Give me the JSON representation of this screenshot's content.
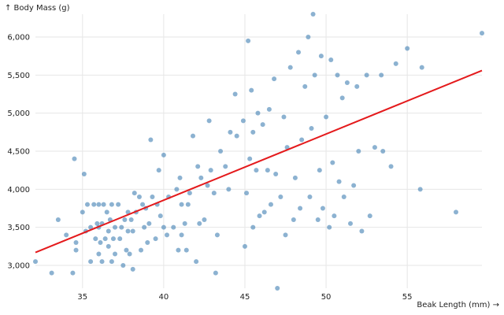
{
  "chart_data": {
    "type": "scatter",
    "xlabel": "Beak Length (mm) →",
    "ylabel": "↑ Body Mass (g)",
    "xlim": [
      32.1,
      59.6
    ],
    "ylim": [
      2700,
      6300
    ],
    "x_ticks": [
      35,
      40,
      45,
      50,
      55
    ],
    "y_ticks": [
      3000,
      3500,
      4000,
      4500,
      5000,
      5500,
      6000
    ],
    "x_tick_labels": [
      "35",
      "40",
      "45",
      "50",
      "55"
    ],
    "y_tick_labels": [
      "3,000",
      "3,500",
      "4,000",
      "4,500",
      "5,000",
      "5,500",
      "6,000"
    ],
    "grid": true,
    "colors": {
      "points": "#4682b4",
      "trend": "#e41a1c",
      "grid": "#e6e6e6"
    },
    "trend_line": {
      "x": [
        32.1,
        59.6
      ],
      "y": [
        3170,
        5560
      ]
    },
    "points": [
      [
        32.1,
        3050
      ],
      [
        33.1,
        2900
      ],
      [
        33.5,
        3600
      ],
      [
        34.0,
        3400
      ],
      [
        34.4,
        2900
      ],
      [
        34.5,
        4400
      ],
      [
        34.6,
        3200
      ],
      [
        34.6,
        3300
      ],
      [
        35.0,
        3700
      ],
      [
        35.1,
        4200
      ],
      [
        35.2,
        3450
      ],
      [
        35.3,
        3800
      ],
      [
        35.5,
        3050
      ],
      [
        35.5,
        3500
      ],
      [
        35.7,
        3800
      ],
      [
        35.8,
        3350
      ],
      [
        35.9,
        3550
      ],
      [
        36.0,
        3150
      ],
      [
        36.0,
        3500
      ],
      [
        36.0,
        3800
      ],
      [
        36.1,
        3300
      ],
      [
        36.2,
        3050
      ],
      [
        36.2,
        3550
      ],
      [
        36.3,
        3800
      ],
      [
        36.4,
        3350
      ],
      [
        36.5,
        3700
      ],
      [
        36.6,
        3250
      ],
      [
        36.6,
        3450
      ],
      [
        36.7,
        3600
      ],
      [
        36.8,
        3800
      ],
      [
        36.8,
        3050
      ],
      [
        36.9,
        3350
      ],
      [
        37.0,
        3150
      ],
      [
        37.0,
        3500
      ],
      [
        37.2,
        3800
      ],
      [
        37.3,
        3350
      ],
      [
        37.4,
        3500
      ],
      [
        37.5,
        3000
      ],
      [
        37.6,
        3600
      ],
      [
        37.7,
        3200
      ],
      [
        37.8,
        3450
      ],
      [
        37.8,
        3700
      ],
      [
        37.9,
        3150
      ],
      [
        38.0,
        3600
      ],
      [
        38.1,
        2950
      ],
      [
        38.1,
        3450
      ],
      [
        38.2,
        3950
      ],
      [
        38.3,
        3700
      ],
      [
        38.5,
        3900
      ],
      [
        38.6,
        3200
      ],
      [
        38.7,
        3800
      ],
      [
        38.8,
        3500
      ],
      [
        38.9,
        3750
      ],
      [
        39.0,
        3300
      ],
      [
        39.1,
        3550
      ],
      [
        39.2,
        4650
      ],
      [
        39.3,
        3900
      ],
      [
        39.5,
        3350
      ],
      [
        39.6,
        3800
      ],
      [
        39.7,
        4250
      ],
      [
        39.8,
        3650
      ],
      [
        40.0,
        3500
      ],
      [
        40.0,
        4450
      ],
      [
        40.2,
        3400
      ],
      [
        40.3,
        3900
      ],
      [
        40.6,
        3500
      ],
      [
        40.8,
        4000
      ],
      [
        40.9,
        3200
      ],
      [
        41.0,
        4150
      ],
      [
        41.1,
        3800
      ],
      [
        41.1,
        3400
      ],
      [
        41.3,
        3550
      ],
      [
        41.4,
        3200
      ],
      [
        41.5,
        3800
      ],
      [
        41.6,
        3950
      ],
      [
        41.8,
        4700
      ],
      [
        42.0,
        3050
      ],
      [
        42.1,
        4300
      ],
      [
        42.2,
        3550
      ],
      [
        42.3,
        4150
      ],
      [
        42.5,
        3600
      ],
      [
        42.7,
        4050
      ],
      [
        42.8,
        4900
      ],
      [
        42.9,
        4250
      ],
      [
        43.1,
        3950
      ],
      [
        43.2,
        2900
      ],
      [
        43.3,
        3400
      ],
      [
        43.5,
        4500
      ],
      [
        43.8,
        4300
      ],
      [
        44.0,
        4000
      ],
      [
        44.1,
        4750
      ],
      [
        44.4,
        5250
      ],
      [
        44.5,
        4700
      ],
      [
        44.9,
        4900
      ],
      [
        45.0,
        3250
      ],
      [
        45.1,
        3950
      ],
      [
        45.2,
        5950
      ],
      [
        45.3,
        4400
      ],
      [
        45.4,
        5300
      ],
      [
        45.5,
        3500
      ],
      [
        45.5,
        4750
      ],
      [
        45.7,
        4250
      ],
      [
        45.8,
        5000
      ],
      [
        45.9,
        3650
      ],
      [
        46.1,
        4850
      ],
      [
        46.2,
        3700
      ],
      [
        46.4,
        4250
      ],
      [
        46.5,
        5050
      ],
      [
        46.6,
        3800
      ],
      [
        46.8,
        5450
      ],
      [
        46.9,
        4200
      ],
      [
        47.0,
        2700
      ],
      [
        47.2,
        3900
      ],
      [
        47.4,
        4950
      ],
      [
        47.5,
        3400
      ],
      [
        47.6,
        4550
      ],
      [
        47.8,
        5600
      ],
      [
        48.0,
        3600
      ],
      [
        48.1,
        4150
      ],
      [
        48.3,
        5800
      ],
      [
        48.4,
        3750
      ],
      [
        48.5,
        4650
      ],
      [
        48.7,
        5350
      ],
      [
        48.9,
        6000
      ],
      [
        49.0,
        3900
      ],
      [
        49.1,
        4800
      ],
      [
        49.2,
        6300
      ],
      [
        49.3,
        5500
      ],
      [
        49.5,
        3600
      ],
      [
        49.6,
        4250
      ],
      [
        49.7,
        5750
      ],
      [
        49.8,
        3750
      ],
      [
        50.0,
        4950
      ],
      [
        50.2,
        3500
      ],
      [
        50.3,
        5700
      ],
      [
        50.4,
        4350
      ],
      [
        50.5,
        3650
      ],
      [
        50.7,
        5500
      ],
      [
        50.8,
        4100
      ],
      [
        51.0,
        5200
      ],
      [
        51.1,
        3900
      ],
      [
        51.3,
        5400
      ],
      [
        51.5,
        3550
      ],
      [
        51.7,
        4050
      ],
      [
        51.9,
        5350
      ],
      [
        52.0,
        4500
      ],
      [
        52.2,
        3450
      ],
      [
        52.5,
        5500
      ],
      [
        52.7,
        3650
      ],
      [
        53.0,
        4550
      ],
      [
        53.4,
        5500
      ],
      [
        53.5,
        4500
      ],
      [
        54.0,
        4300
      ],
      [
        54.3,
        5650
      ],
      [
        55.0,
        5850
      ],
      [
        55.8,
        4000
      ],
      [
        55.9,
        5600
      ],
      [
        58.0,
        3700
      ],
      [
        59.6,
        6050
      ]
    ]
  }
}
